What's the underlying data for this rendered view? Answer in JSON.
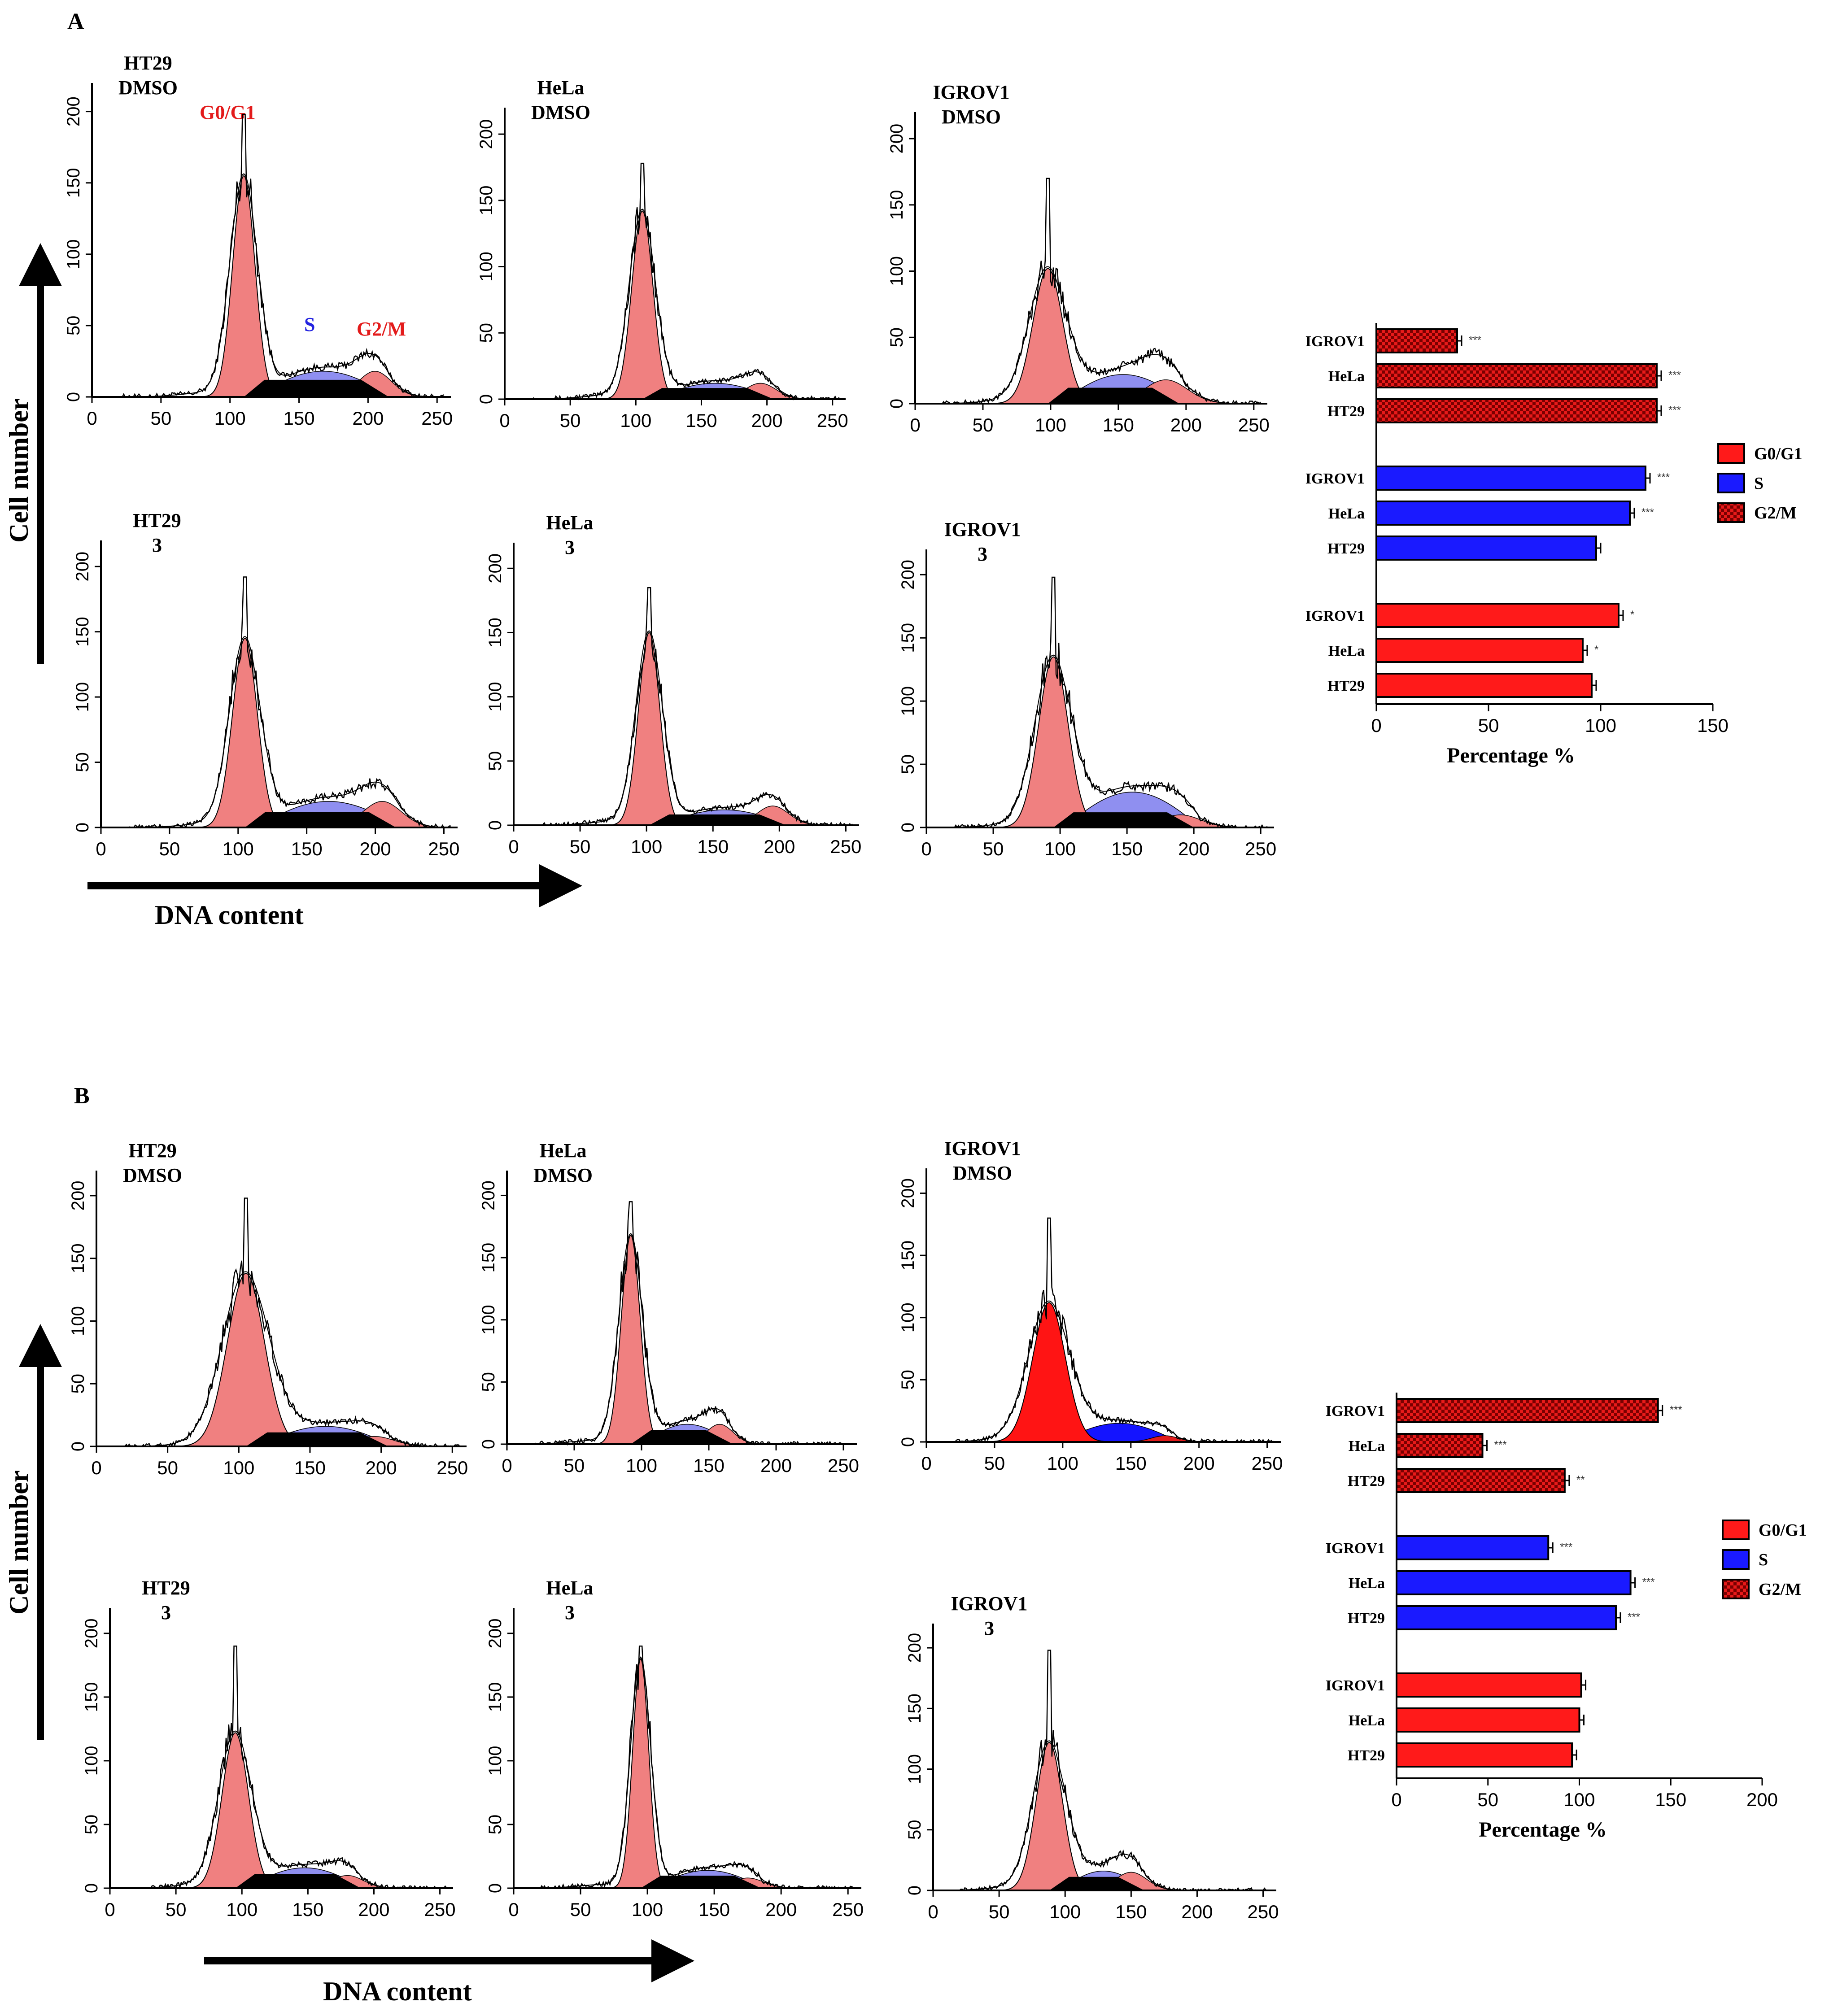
{
  "figure": {
    "panel_labels": [
      "A",
      "B"
    ],
    "axis_titles": {
      "y": "Cell number",
      "x": "DNA content"
    },
    "phase_annotations": {
      "g0g1": "G0/G1",
      "s": "S",
      "g2m": "G2/M"
    },
    "colors": {
      "g0g1_light": "#f08080",
      "s_light": "#8f8ff0",
      "g0g1_strong": "#ff1414",
      "s_strong": "#1414ff",
      "g2m_strong": "#e01b1b",
      "black": "#000000"
    }
  },
  "chart_data": [
    {
      "type": "area",
      "panel": "A",
      "label_line1": "HT29",
      "label_line2": "DMSO",
      "xlim": [
        0,
        260
      ],
      "ylim": [
        0,
        220
      ],
      "xticks": [
        "0",
        "50",
        "100",
        "150",
        "200",
        "250"
      ],
      "yticks": [
        "0",
        "50",
        "100",
        "150",
        "200"
      ],
      "g0g1": {
        "center": 110,
        "height": 155,
        "width": 8
      },
      "s_level": 18,
      "g2m": {
        "center": 205,
        "height": 18,
        "width": 12
      },
      "total_peak": 198,
      "style": "light"
    },
    {
      "type": "area",
      "panel": "A",
      "label_line1": "HeLa",
      "label_line2": "DMSO",
      "xlim": [
        0,
        260
      ],
      "ylim": [
        0,
        220
      ],
      "xticks": [
        "0",
        "50",
        "100",
        "150",
        "200",
        "250"
      ],
      "yticks": [
        "0",
        "50",
        "100",
        "150",
        "200"
      ],
      "g0g1": {
        "center": 105,
        "height": 142,
        "width": 8
      },
      "s_level": 12,
      "g2m": {
        "center": 195,
        "height": 12,
        "width": 12
      },
      "total_peak": 178,
      "style": "light"
    },
    {
      "type": "area",
      "panel": "A",
      "label_line1": "IGROV1",
      "label_line2": "DMSO",
      "xlim": [
        0,
        260
      ],
      "ylim": [
        0,
        220
      ],
      "xticks": [
        "0",
        "50",
        "100",
        "150",
        "200",
        "250"
      ],
      "yticks": [
        "0",
        "50",
        "100",
        "150",
        "200"
      ],
      "g0g1": {
        "center": 98,
        "height": 102,
        "width": 11
      },
      "s_level": 22,
      "g2m": {
        "center": 185,
        "height": 18,
        "width": 16
      },
      "total_peak": 170,
      "style": "light"
    },
    {
      "type": "area",
      "panel": "A",
      "label_line1": "HT29",
      "label_line2": "3",
      "xlim": [
        0,
        260
      ],
      "ylim": [
        0,
        220
      ],
      "xticks": [
        "0",
        "50",
        "100",
        "150",
        "200",
        "250"
      ],
      "yticks": [
        "0",
        "50",
        "100",
        "150",
        "200"
      ],
      "g0g1": {
        "center": 105,
        "height": 145,
        "width": 9
      },
      "s_level": 20,
      "g2m": {
        "center": 205,
        "height": 20,
        "width": 14
      },
      "total_peak": 192,
      "style": "light"
    },
    {
      "type": "area",
      "panel": "A",
      "label_line1": "HeLa",
      "label_line2": "3",
      "xlim": [
        0,
        260
      ],
      "ylim": [
        0,
        220
      ],
      "xticks": [
        "0",
        "50",
        "100",
        "150",
        "200",
        "250"
      ],
      "yticks": [
        "0",
        "50",
        "100",
        "150",
        "200"
      ],
      "g0g1": {
        "center": 102,
        "height": 150,
        "width": 8
      },
      "s_level": 12,
      "g2m": {
        "center": 195,
        "height": 15,
        "width": 12
      },
      "total_peak": 185,
      "style": "light"
    },
    {
      "type": "area",
      "panel": "A",
      "label_line1": "IGROV1",
      "label_line2": "3",
      "xlim": [
        0,
        260
      ],
      "ylim": [
        0,
        220
      ],
      "xticks": [
        "0",
        "50",
        "100",
        "150",
        "200",
        "250"
      ],
      "yticks": [
        "0",
        "50",
        "100",
        "150",
        "200"
      ],
      "g0g1": {
        "center": 95,
        "height": 135,
        "width": 11
      },
      "s_level": 28,
      "g2m": {
        "center": 190,
        "height": 10,
        "width": 15
      },
      "total_peak": 198,
      "style": "light"
    },
    {
      "type": "area",
      "panel": "B",
      "label_line1": "HT29",
      "label_line2": "DMSO",
      "xlim": [
        0,
        260
      ],
      "ylim": [
        0,
        220
      ],
      "xticks": [
        "0",
        "50",
        "100",
        "150",
        "200",
        "250"
      ],
      "yticks": [
        "0",
        "50",
        "100",
        "150",
        "200"
      ],
      "g0g1": {
        "center": 105,
        "height": 138,
        "width": 13
      },
      "s_level": 16,
      "g2m": {
        "center": 195,
        "height": 8,
        "width": 14
      },
      "total_peak": 198,
      "style": "light"
    },
    {
      "type": "area",
      "panel": "B",
      "label_line1": "HeLa",
      "label_line2": "DMSO",
      "xlim": [
        0,
        260
      ],
      "ylim": [
        0,
        220
      ],
      "xticks": [
        "0",
        "50",
        "100",
        "150",
        "200",
        "250"
      ],
      "yticks": [
        "0",
        "50",
        "100",
        "150",
        "200"
      ],
      "g0g1": {
        "center": 92,
        "height": 168,
        "width": 7
      },
      "s_level": 16,
      "g2m": {
        "center": 158,
        "height": 16,
        "width": 10
      },
      "total_peak": 195,
      "style": "light"
    },
    {
      "type": "area",
      "panel": "B",
      "label_line1": "IGROV1",
      "label_line2": "DMSO",
      "xlim": [
        0,
        260
      ],
      "ylim": [
        0,
        220
      ],
      "xticks": [
        "0",
        "50",
        "100",
        "150",
        "200",
        "250"
      ],
      "yticks": [
        "0",
        "50",
        "100",
        "150",
        "200"
      ],
      "g0g1": {
        "center": 90,
        "height": 112,
        "width": 12
      },
      "s_level": 15,
      "g2m": {
        "center": 175,
        "height": 5,
        "width": 10
      },
      "total_peak": 180,
      "style": "strong"
    },
    {
      "type": "area",
      "panel": "B",
      "label_line1": "HT29",
      "label_line2": "3",
      "xlim": [
        0,
        260
      ],
      "ylim": [
        0,
        220
      ],
      "xticks": [
        "0",
        "50",
        "100",
        "150",
        "200",
        "250"
      ],
      "yticks": [
        "0",
        "50",
        "100",
        "150",
        "200"
      ],
      "g0g1": {
        "center": 95,
        "height": 122,
        "width": 10
      },
      "s_level": 16,
      "g2m": {
        "center": 180,
        "height": 10,
        "width": 12
      },
      "total_peak": 190,
      "style": "light"
    },
    {
      "type": "area",
      "panel": "B",
      "label_line1": "HeLa",
      "label_line2": "3",
      "xlim": [
        0,
        260
      ],
      "ylim": [
        0,
        220
      ],
      "xticks": [
        "0",
        "50",
        "100",
        "150",
        "200",
        "250"
      ],
      "yticks": [
        "0",
        "50",
        "100",
        "150",
        "200"
      ],
      "g0g1": {
        "center": 95,
        "height": 180,
        "width": 6
      },
      "s_level": 14,
      "g2m": {
        "center": 175,
        "height": 8,
        "width": 12
      },
      "total_peak": 190,
      "style": "light"
    },
    {
      "type": "area",
      "panel": "B",
      "label_line1": "IGROV1",
      "label_line2": "3",
      "xlim": [
        0,
        260
      ],
      "ylim": [
        0,
        220
      ],
      "xticks": [
        "0",
        "50",
        "100",
        "150",
        "200",
        "250"
      ],
      "yticks": [
        "0",
        "50",
        "100",
        "150",
        "200"
      ],
      "g0g1": {
        "center": 88,
        "height": 122,
        "width": 10
      },
      "s_level": 16,
      "g2m": {
        "center": 150,
        "height": 15,
        "width": 12
      },
      "total_peak": 198,
      "style": "light"
    },
    {
      "type": "bar",
      "panel": "A",
      "orientation": "horizontal",
      "xlabel": "Percentage %",
      "xlim": [
        0,
        150
      ],
      "xticks": [
        "0",
        "50",
        "100",
        "150"
      ],
      "groups": [
        {
          "phase": "G2/M",
          "rows": [
            {
              "category": "IGROV1",
              "value": 36,
              "significance": "***"
            },
            {
              "category": "HeLa",
              "value": 125,
              "significance": "***"
            },
            {
              "category": "HT29",
              "value": 125,
              "significance": "***"
            }
          ]
        },
        {
          "phase": "S",
          "rows": [
            {
              "category": "IGROV1",
              "value": 120,
              "significance": "***"
            },
            {
              "category": "HeLa",
              "value": 113,
              "significance": "***"
            },
            {
              "category": "HT29",
              "value": 98,
              "significance": ""
            }
          ]
        },
        {
          "phase": "G0/G1",
          "rows": [
            {
              "category": "IGROV1",
              "value": 108,
              "significance": "*"
            },
            {
              "category": "HeLa",
              "value": 92,
              "significance": "*"
            },
            {
              "category": "HT29",
              "value": 96,
              "significance": ""
            }
          ]
        }
      ],
      "legend": [
        "G0/G1",
        "S",
        "G2/M"
      ]
    },
    {
      "type": "bar",
      "panel": "B",
      "orientation": "horizontal",
      "xlabel": "Percentage %",
      "xlim": [
        0,
        200
      ],
      "xticks": [
        "0",
        "50",
        "100",
        "150",
        "200"
      ],
      "groups": [
        {
          "phase": "G2/M",
          "rows": [
            {
              "category": "IGROV1",
              "value": 143,
              "significance": "***"
            },
            {
              "category": "HeLa",
              "value": 47,
              "significance": "***"
            },
            {
              "category": "HT29",
              "value": 92,
              "significance": "**"
            }
          ]
        },
        {
          "phase": "S",
          "rows": [
            {
              "category": "IGROV1",
              "value": 83,
              "significance": "***"
            },
            {
              "category": "HeLa",
              "value": 128,
              "significance": "***"
            },
            {
              "category": "HT29",
              "value": 120,
              "significance": "***"
            }
          ]
        },
        {
          "phase": "G0/G1",
          "rows": [
            {
              "category": "IGROV1",
              "value": 101,
              "significance": ""
            },
            {
              "category": "HeLa",
              "value": 100,
              "significance": ""
            },
            {
              "category": "HT29",
              "value": 96,
              "significance": ""
            }
          ]
        }
      ],
      "legend": [
        "G0/G1",
        "S",
        "G2/M"
      ]
    }
  ]
}
